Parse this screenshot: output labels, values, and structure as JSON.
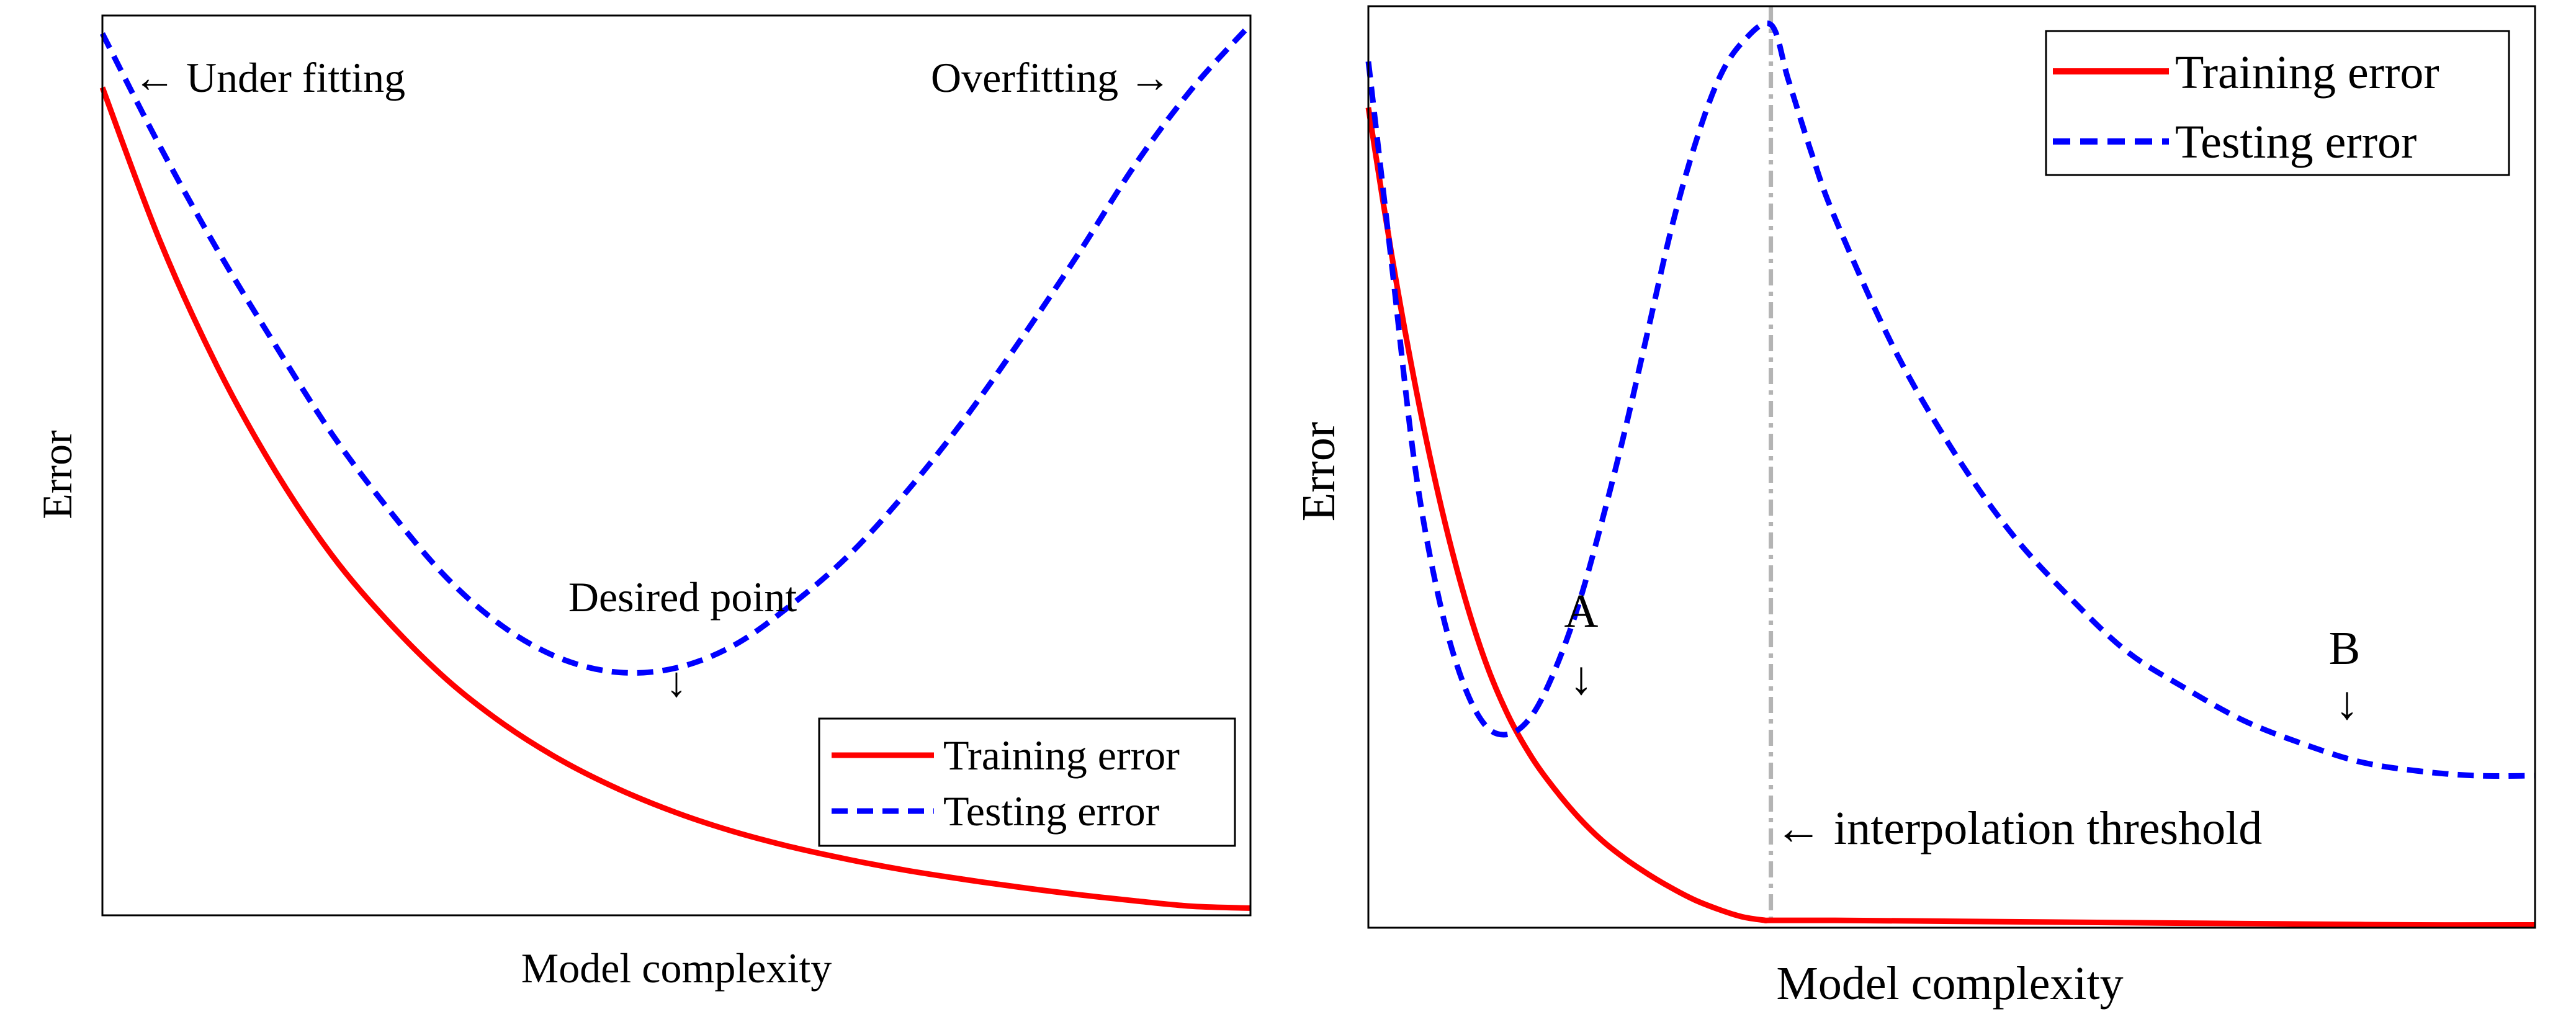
{
  "chart_data": [
    {
      "type": "line",
      "title": "",
      "xlabel": "Model complexity",
      "ylabel": "Error",
      "xlim": [
        0,
        1
      ],
      "ylim": [
        0,
        1
      ],
      "grid": false,
      "ticks": false,
      "legend": {
        "position": "bottom-right",
        "entries": [
          "Training error",
          "Testing error"
        ]
      },
      "series": [
        {
          "name": "Training error",
          "style": "solid",
          "color": "#ff0000",
          "x": [
            0,
            0.05,
            0.1,
            0.15,
            0.2,
            0.25,
            0.3,
            0.35,
            0.4,
            0.45,
            0.5,
            0.55,
            0.6,
            0.65,
            0.7,
            0.75,
            0.8,
            0.85,
            0.9,
            0.95,
            1
          ],
          "y": [
            0.92,
            0.75,
            0.61,
            0.495,
            0.4,
            0.325,
            0.262,
            0.212,
            0.172,
            0.14,
            0.114,
            0.093,
            0.076,
            0.062,
            0.05,
            0.04,
            0.031,
            0.023,
            0.016,
            0.01,
            0.008
          ]
        },
        {
          "name": "Testing error",
          "style": "dashed",
          "color": "#0000ff",
          "x": [
            0,
            0.05,
            0.1,
            0.15,
            0.2,
            0.25,
            0.3,
            0.35,
            0.4,
            0.45,
            0.5,
            0.55,
            0.6,
            0.65,
            0.7,
            0.75,
            0.8,
            0.85,
            0.9,
            0.95,
            1
          ],
          "y": [
            0.98,
            0.855,
            0.74,
            0.635,
            0.535,
            0.45,
            0.375,
            0.32,
            0.285,
            0.27,
            0.275,
            0.3,
            0.345,
            0.4,
            0.47,
            0.55,
            0.64,
            0.735,
            0.835,
            0.92,
            0.99
          ]
        }
      ],
      "annotations": [
        {
          "text": "← Under fitting",
          "x": 0.03,
          "y": 0.97
        },
        {
          "text": "Overfitting →",
          "x": 0.72,
          "y": 0.97
        },
        {
          "text": "Desired point",
          "x": 0.49,
          "y": 0.35
        },
        {
          "text": "↓",
          "x": 0.5,
          "y": 0.3
        }
      ]
    },
    {
      "type": "line",
      "title": "",
      "xlabel": "Model complexity",
      "ylabel": "Error",
      "xlim": [
        0,
        1
      ],
      "ylim": [
        0,
        1
      ],
      "grid": false,
      "ticks": false,
      "legend": {
        "position": "top-right",
        "entries": [
          "Training error",
          "Testing error"
        ]
      },
      "series": [
        {
          "name": "Training error",
          "style": "solid",
          "color": "#ff0000",
          "x": [
            0,
            0.02,
            0.04,
            0.06,
            0.08,
            0.1,
            0.12,
            0.14,
            0.16,
            0.18,
            0.2,
            0.22,
            0.24,
            0.26,
            0.28,
            0.3,
            0.32,
            0.34,
            0.345,
            0.4,
            0.5,
            0.6,
            0.7,
            0.8,
            0.9,
            1
          ],
          "y": [
            0.89,
            0.73,
            0.59,
            0.47,
            0.37,
            0.29,
            0.23,
            0.185,
            0.15,
            0.12,
            0.095,
            0.075,
            0.058,
            0.043,
            0.03,
            0.02,
            0.012,
            0.008,
            0.008,
            0.008,
            0.007,
            0.006,
            0.005,
            0.004,
            0.003,
            0.003
          ]
        },
        {
          "name": "Testing error",
          "style": "dashed",
          "color": "#0000ff",
          "x": [
            0,
            0.02,
            0.04,
            0.06,
            0.08,
            0.1,
            0.12,
            0.14,
            0.16,
            0.18,
            0.2,
            0.22,
            0.24,
            0.26,
            0.28,
            0.3,
            0.32,
            0.345,
            0.36,
            0.38,
            0.4,
            0.45,
            0.5,
            0.55,
            0.6,
            0.65,
            0.7,
            0.75,
            0.8,
            0.85,
            0.9,
            0.95,
            1
          ],
          "y": [
            0.94,
            0.72,
            0.5,
            0.36,
            0.27,
            0.22,
            0.21,
            0.23,
            0.28,
            0.35,
            0.44,
            0.54,
            0.65,
            0.76,
            0.85,
            0.92,
            0.96,
            0.98,
            0.92,
            0.84,
            0.77,
            0.63,
            0.52,
            0.43,
            0.36,
            0.3,
            0.26,
            0.225,
            0.2,
            0.18,
            0.17,
            0.165,
            0.165
          ]
        }
      ],
      "annotations": [
        {
          "text": "A",
          "x": 0.185,
          "y": 0.32
        },
        {
          "text": "↓",
          "x": 0.185,
          "y": 0.26
        },
        {
          "text": "B",
          "x": 0.835,
          "y": 0.29
        },
        {
          "text": "↓",
          "x": 0.835,
          "y": 0.23
        },
        {
          "text": "← interpolation threshold",
          "x": 0.355,
          "y": 0.1
        }
      ],
      "vline": {
        "label": "interpolation threshold",
        "x": 0.345,
        "color": "#b4b4b4"
      }
    }
  ]
}
